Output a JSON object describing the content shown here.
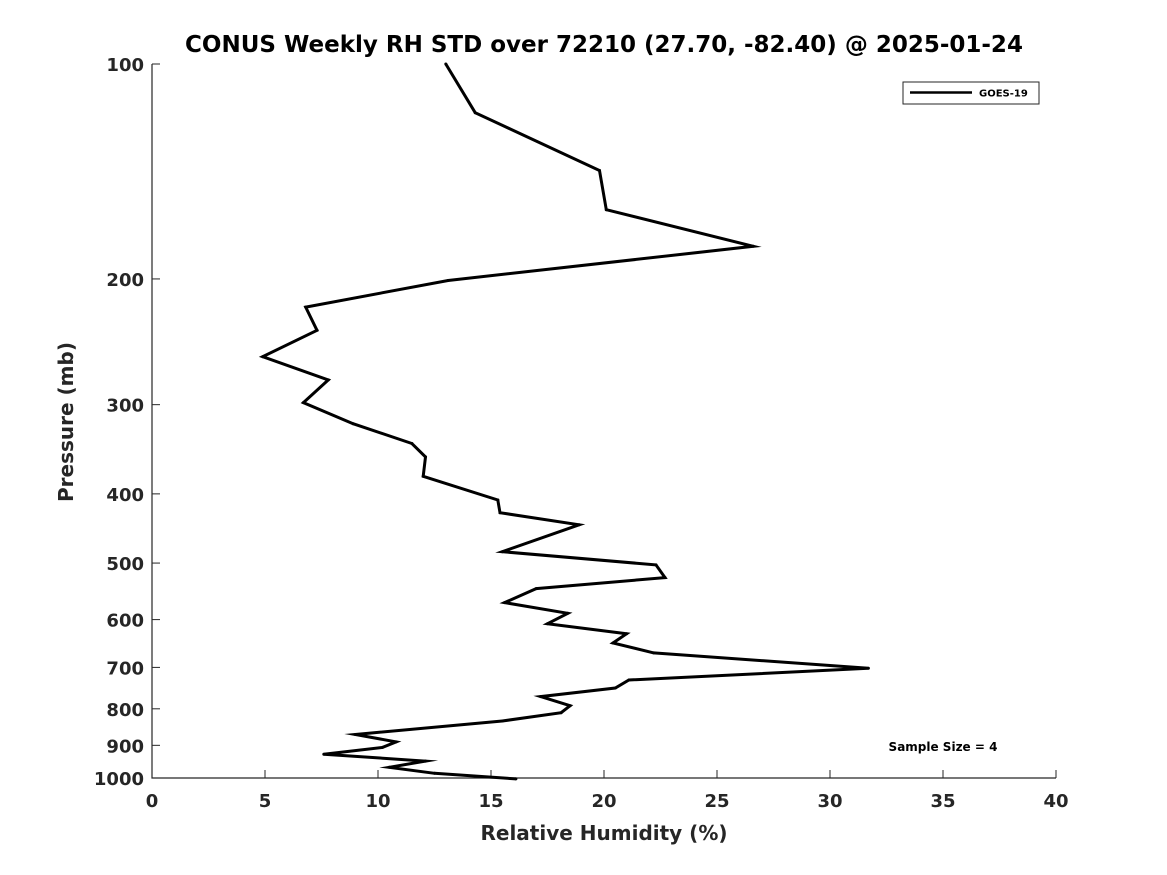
{
  "chart_data": {
    "type": "line",
    "title": "CONUS Weekly RH STD over 72210 (27.70, -82.40) @ 2025-01-24",
    "xlabel": "Relative Humidity (%)",
    "ylabel": "Pressure (mb)",
    "xlim": [
      0,
      40
    ],
    "ylim": [
      100,
      1000
    ],
    "y_scale": "log",
    "y_inverted": true,
    "x_ticks": [
      "0",
      "5",
      "10",
      "15",
      "20",
      "25",
      "30",
      "35",
      "40"
    ],
    "y_ticks": [
      "100",
      "200",
      "300",
      "400",
      "500",
      "600",
      "700",
      "800",
      "900",
      "1000"
    ],
    "grid": false,
    "legend_position": "top-right",
    "series": [
      {
        "name": "GOES-19",
        "color": "#000000",
        "points": [
          [
            13.0,
            100
          ],
          [
            14.3,
            117
          ],
          [
            19.8,
            141
          ],
          [
            20.1,
            160
          ],
          [
            26.6,
            180
          ],
          [
            13.1,
            201
          ],
          [
            6.8,
            219
          ],
          [
            7.3,
            236
          ],
          [
            4.9,
            257
          ],
          [
            7.8,
            277
          ],
          [
            6.7,
            298
          ],
          [
            8.9,
            319
          ],
          [
            11.5,
            340
          ],
          [
            12.1,
            355
          ],
          [
            12.0,
            378
          ],
          [
            15.3,
            408
          ],
          [
            15.4,
            425
          ],
          [
            18.9,
            442
          ],
          [
            15.5,
            482
          ],
          [
            22.3,
            503
          ],
          [
            22.7,
            524
          ],
          [
            17.0,
            543
          ],
          [
            15.6,
            568
          ],
          [
            18.4,
            588
          ],
          [
            17.5,
            608
          ],
          [
            21.0,
            628
          ],
          [
            20.4,
            647
          ],
          [
            22.2,
            668
          ],
          [
            31.7,
            702
          ],
          [
            21.1,
            729
          ],
          [
            20.5,
            748
          ],
          [
            17.2,
            769
          ],
          [
            18.5,
            792
          ],
          [
            18.1,
            810
          ],
          [
            15.5,
            832
          ],
          [
            9.0,
            869
          ],
          [
            10.8,
            890
          ],
          [
            10.2,
            906
          ],
          [
            7.6,
            926
          ],
          [
            12.1,
            947
          ],
          [
            10.5,
            966
          ],
          [
            12.5,
            985
          ],
          [
            16.1,
            1003
          ]
        ]
      }
    ],
    "annotations": [
      "Sample Size = 4"
    ]
  }
}
